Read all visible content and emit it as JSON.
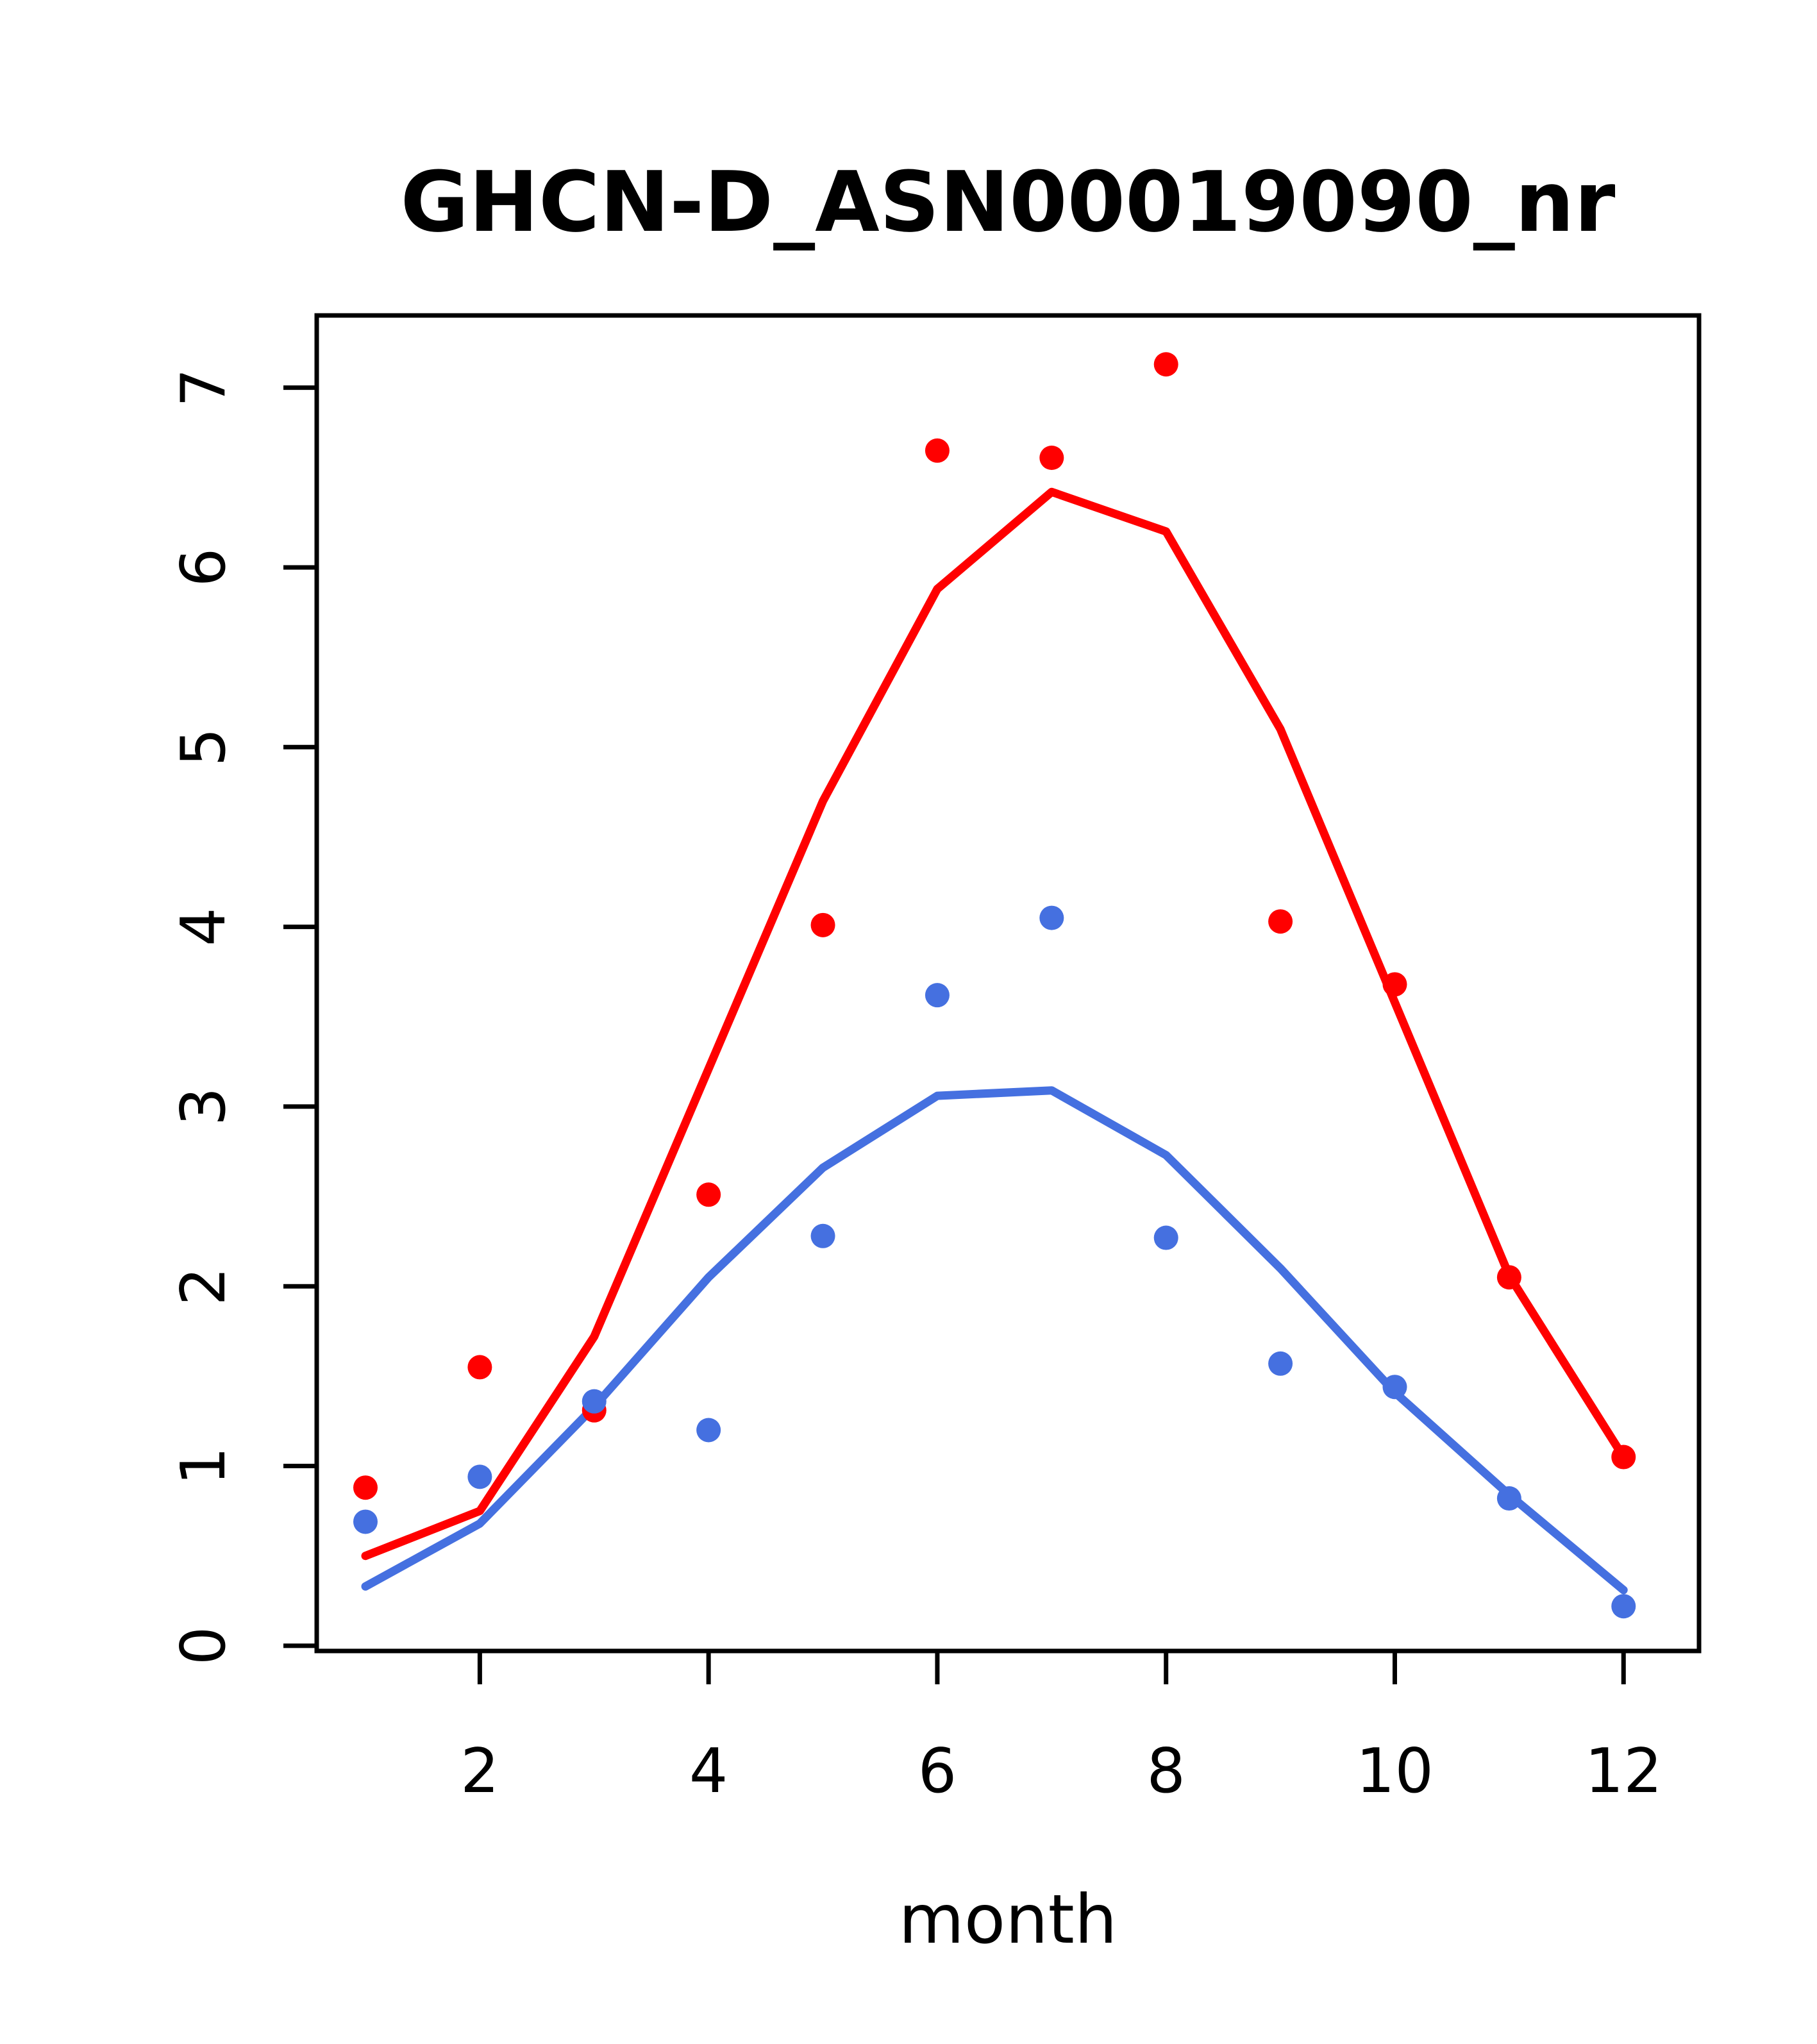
{
  "page": {
    "background": "#ffffff"
  },
  "chart_data": {
    "type": "line+scatter",
    "title": "GHCN-D_ASN00019090_nr",
    "xlabel": "month",
    "ylabel": "",
    "x": [
      1,
      2,
      3,
      4,
      5,
      6,
      7,
      8,
      9,
      10,
      11,
      12
    ],
    "x_ticks": [
      2,
      4,
      6,
      8,
      10,
      12
    ],
    "y_ticks": [
      0,
      1,
      2,
      3,
      4,
      5,
      6,
      7
    ],
    "xlim": [
      0.574,
      12.66
    ],
    "ylim": [
      -0.029,
      7.402
    ],
    "grid": false,
    "legend": "none",
    "colors": {
      "red": "#ff0000",
      "blue": "#4570e0",
      "axis": "#000000"
    },
    "series": [
      {
        "name": "red-line",
        "draw": "line",
        "color": "#ff0000",
        "values": [
          0.5,
          0.75,
          1.72,
          3.21,
          4.7,
          5.88,
          6.42,
          6.2,
          5.1,
          3.58,
          2.06,
          1.05
        ]
      },
      {
        "name": "blue-line",
        "draw": "line",
        "color": "#4570e0",
        "values": [
          0.33,
          0.68,
          1.33,
          2.05,
          2.66,
          3.06,
          3.09,
          2.73,
          2.1,
          1.41,
          0.84,
          0.31
        ]
      },
      {
        "name": "red-points",
        "draw": "scatter",
        "color": "#ff0000",
        "values": [
          0.88,
          1.55,
          1.31,
          2.51,
          4.01,
          6.65,
          6.61,
          7.13,
          4.03,
          3.68,
          2.05,
          1.05
        ]
      },
      {
        "name": "blue-points",
        "draw": "scatter",
        "color": "#4570e0",
        "values": [
          0.69,
          0.94,
          1.36,
          1.2,
          2.28,
          3.62,
          4.05,
          2.27,
          1.57,
          1.44,
          0.82,
          0.22
        ]
      }
    ]
  }
}
